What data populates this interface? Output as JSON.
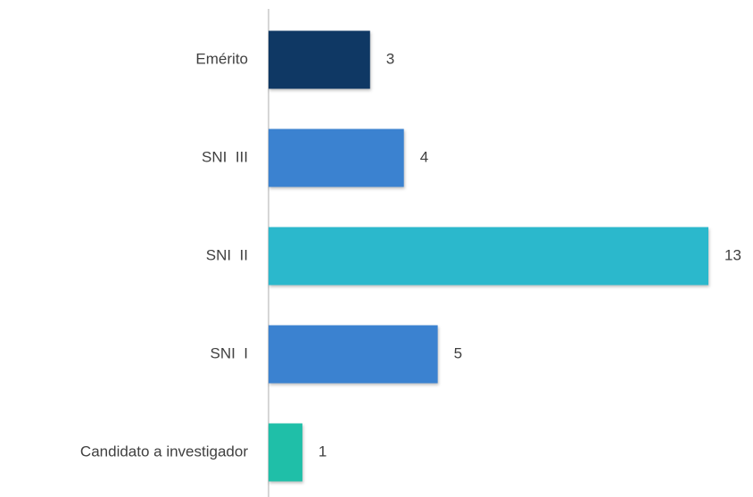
{
  "chart_data": {
    "type": "barh",
    "categories": [
      "Emérito",
      "SNI  III",
      "SNI  II",
      "SNI  I",
      "Candidato a investigador"
    ],
    "values": [
      3,
      4,
      13,
      5,
      1
    ],
    "colors": [
      "#0f3864",
      "#3b82d0",
      "#2bb8cc",
      "#3b82d0",
      "#1fbfa8"
    ],
    "xlim": [
      0,
      13
    ]
  }
}
